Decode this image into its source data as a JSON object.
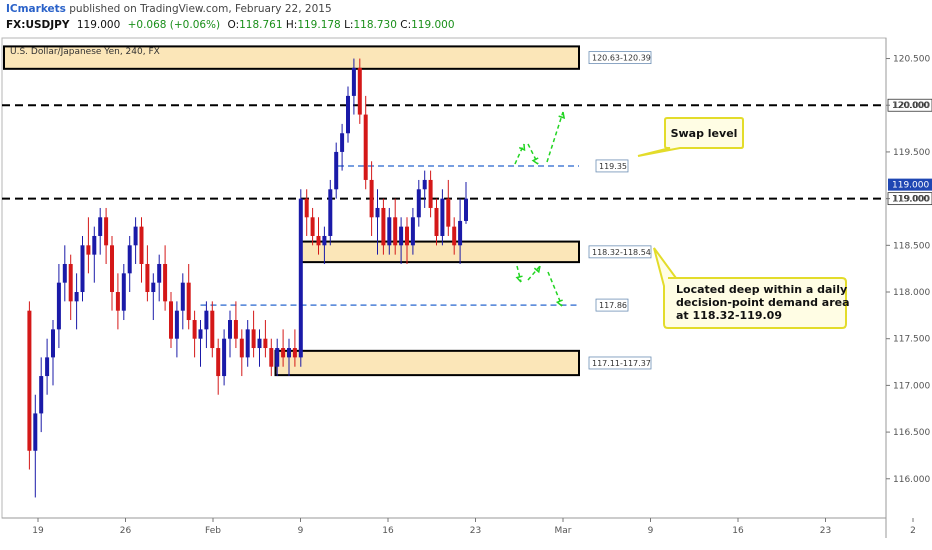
{
  "header": {
    "brand": "ICmarkets",
    "published": " published on TradingView.com, February 22, 2015",
    "symbol": "FX:USDJPY",
    "last": "119.000",
    "change": "+0.068 (+0.06%)",
    "o_label": "O:",
    "o": "118.761",
    "h_label": "H:",
    "h": "119.178",
    "l_label": "L:",
    "l": "118.730",
    "c_label": "C:",
    "c": "119.000"
  },
  "colors": {
    "bull": "#1a1aa8",
    "bear": "#d41818",
    "zone_fill": "#fbe6b8",
    "zone_stroke": "#000000",
    "level_black": "#000000",
    "level_blue": "#4a7fd6",
    "arrow": "#22d422",
    "callout_fill": "#fffde4",
    "callout_stroke": "#e3dc2a",
    "price_tag": "#1f47b3"
  },
  "chart_data": {
    "type": "candlestick",
    "title": "U.S. Dollar/Japanese Yen, 240, FX",
    "ylim": [
      115.58,
      120.72
    ],
    "y_ticks": [
      "120.500",
      "120.000",
      "119.500",
      "119.000",
      "118.500",
      "118.000",
      "117.500",
      "117.000",
      "116.500",
      "116.000"
    ],
    "x_ticks": [
      "19",
      "26",
      "Feb",
      "9",
      "16",
      "23",
      "Mar",
      "9",
      "16",
      "23",
      "2"
    ],
    "x_tick_dates": [
      "2015-01-19",
      "2015-01-26",
      "2015-02-02",
      "2015-02-09",
      "2015-02-16",
      "2015-02-23",
      "2015-03-02",
      "2015-03-09",
      "2015-03-16",
      "2015-03-23",
      "2015-03-30"
    ],
    "last_price_label": "119.000",
    "levels": [
      {
        "price": 120.0,
        "style": "black-dashed",
        "label": "120.000"
      },
      {
        "price": 119.0,
        "style": "black-dashed",
        "label": "119.000"
      },
      {
        "price": 119.35,
        "style": "blue-dashed",
        "label": "119.35",
        "start": "2015-02-12"
      },
      {
        "price": 117.86,
        "style": "blue-dashed",
        "label": "117.86",
        "start": "2015-02-01"
      }
    ],
    "zones": [
      {
        "label": "120.63-120.39",
        "low": 120.39,
        "high": 120.63,
        "start": "2015-01-16"
      },
      {
        "label": "118.32-118.54",
        "low": 118.32,
        "high": 118.54,
        "start": "2015-02-09"
      },
      {
        "label": "117.11-117.37",
        "low": 117.11,
        "high": 117.37,
        "start": "2015-02-07"
      }
    ],
    "annotations": [
      {
        "text": "Swap level",
        "lines": [
          "Swap level"
        ]
      },
      {
        "text": "Located deep within a daily decision-point demand area at 118.32-119.09",
        "lines": [
          "Located deep within a daily",
          "decision-point demand area",
          "at 118.32-119.09"
        ]
      }
    ],
    "ohlc": [
      [
        117.8,
        117.9,
        116.1,
        116.3
      ],
      [
        116.3,
        116.9,
        115.8,
        116.7
      ],
      [
        116.7,
        117.3,
        116.5,
        117.1
      ],
      [
        117.1,
        117.5,
        116.9,
        117.3
      ],
      [
        117.3,
        117.7,
        117.0,
        117.6
      ],
      [
        117.6,
        118.3,
        117.4,
        118.1
      ],
      [
        118.1,
        118.5,
        117.9,
        118.3
      ],
      [
        118.3,
        118.4,
        117.7,
        117.9
      ],
      [
        117.9,
        118.2,
        117.6,
        118.0
      ],
      [
        118.0,
        118.6,
        117.9,
        118.5
      ],
      [
        118.5,
        118.8,
        118.2,
        118.4
      ],
      [
        118.4,
        118.7,
        118.1,
        118.6
      ],
      [
        118.6,
        118.9,
        118.4,
        118.8
      ],
      [
        118.8,
        118.9,
        118.3,
        118.5
      ],
      [
        118.5,
        118.6,
        117.8,
        118.0
      ],
      [
        118.0,
        118.2,
        117.6,
        117.8
      ],
      [
        117.8,
        118.3,
        117.7,
        118.2
      ],
      [
        118.2,
        118.6,
        118.0,
        118.5
      ],
      [
        118.5,
        118.8,
        118.3,
        118.7
      ],
      [
        118.7,
        118.8,
        118.1,
        118.3
      ],
      [
        118.3,
        118.5,
        117.9,
        118.0
      ],
      [
        118.0,
        118.2,
        117.7,
        118.1
      ],
      [
        118.1,
        118.4,
        117.9,
        118.3
      ],
      [
        118.3,
        118.5,
        117.8,
        117.9
      ],
      [
        117.9,
        118.0,
        117.4,
        117.5
      ],
      [
        117.5,
        117.9,
        117.3,
        117.8
      ],
      [
        117.8,
        118.2,
        117.6,
        118.1
      ],
      [
        118.1,
        118.3,
        117.6,
        117.7
      ],
      [
        117.7,
        117.8,
        117.3,
        117.5
      ],
      [
        117.5,
        117.7,
        117.2,
        117.6
      ],
      [
        117.6,
        117.9,
        117.4,
        117.8
      ],
      [
        117.8,
        117.9,
        117.3,
        117.4
      ],
      [
        117.4,
        117.5,
        116.9,
        117.1
      ],
      [
        117.1,
        117.6,
        117.0,
        117.5
      ],
      [
        117.5,
        117.8,
        117.3,
        117.7
      ],
      [
        117.7,
        117.9,
        117.4,
        117.5
      ],
      [
        117.5,
        117.6,
        117.1,
        117.3
      ],
      [
        117.3,
        117.7,
        117.2,
        117.6
      ],
      [
        117.6,
        117.8,
        117.3,
        117.4
      ],
      [
        117.4,
        117.6,
        117.2,
        117.5
      ],
      [
        117.5,
        117.7,
        117.3,
        117.4
      ],
      [
        117.4,
        117.5,
        117.1,
        117.2
      ],
      [
        117.2,
        117.5,
        117.1,
        117.4
      ],
      [
        117.4,
        117.6,
        117.2,
        117.3
      ],
      [
        117.3,
        117.5,
        117.1,
        117.4
      ],
      [
        117.4,
        117.6,
        117.2,
        117.3
      ],
      [
        117.3,
        119.1,
        117.2,
        119.0
      ],
      [
        119.0,
        119.1,
        118.6,
        118.8
      ],
      [
        118.8,
        118.9,
        118.5,
        118.6
      ],
      [
        118.6,
        118.8,
        118.4,
        118.5
      ],
      [
        118.5,
        118.7,
        118.3,
        118.6
      ],
      [
        118.6,
        119.2,
        118.5,
        119.1
      ],
      [
        119.1,
        119.6,
        119.0,
        119.5
      ],
      [
        119.5,
        119.8,
        119.3,
        119.7
      ],
      [
        119.7,
        120.2,
        119.6,
        120.1
      ],
      [
        120.1,
        120.5,
        119.9,
        120.4
      ],
      [
        120.4,
        120.5,
        119.8,
        119.9
      ],
      [
        119.9,
        120.1,
        119.1,
        119.2
      ],
      [
        119.2,
        119.4,
        118.6,
        118.8
      ],
      [
        118.8,
        119.1,
        118.4,
        118.9
      ],
      [
        118.9,
        119.0,
        118.4,
        118.5
      ],
      [
        118.5,
        118.9,
        118.4,
        118.8
      ],
      [
        118.8,
        119.0,
        118.4,
        118.5
      ],
      [
        118.5,
        118.8,
        118.3,
        118.7
      ],
      [
        118.7,
        118.8,
        118.3,
        118.5
      ],
      [
        118.5,
        118.9,
        118.4,
        118.8
      ],
      [
        118.8,
        119.2,
        118.7,
        119.1
      ],
      [
        119.1,
        119.3,
        118.9,
        119.2
      ],
      [
        119.2,
        119.3,
        118.8,
        118.9
      ],
      [
        118.9,
        119.0,
        118.5,
        118.6
      ],
      [
        118.6,
        119.1,
        118.5,
        119.0
      ],
      [
        119.0,
        119.2,
        118.6,
        118.7
      ],
      [
        118.7,
        118.8,
        118.4,
        118.5
      ],
      [
        118.5,
        119.0,
        118.3,
        118.761
      ],
      [
        118.761,
        119.178,
        118.73,
        119.0
      ]
    ]
  }
}
